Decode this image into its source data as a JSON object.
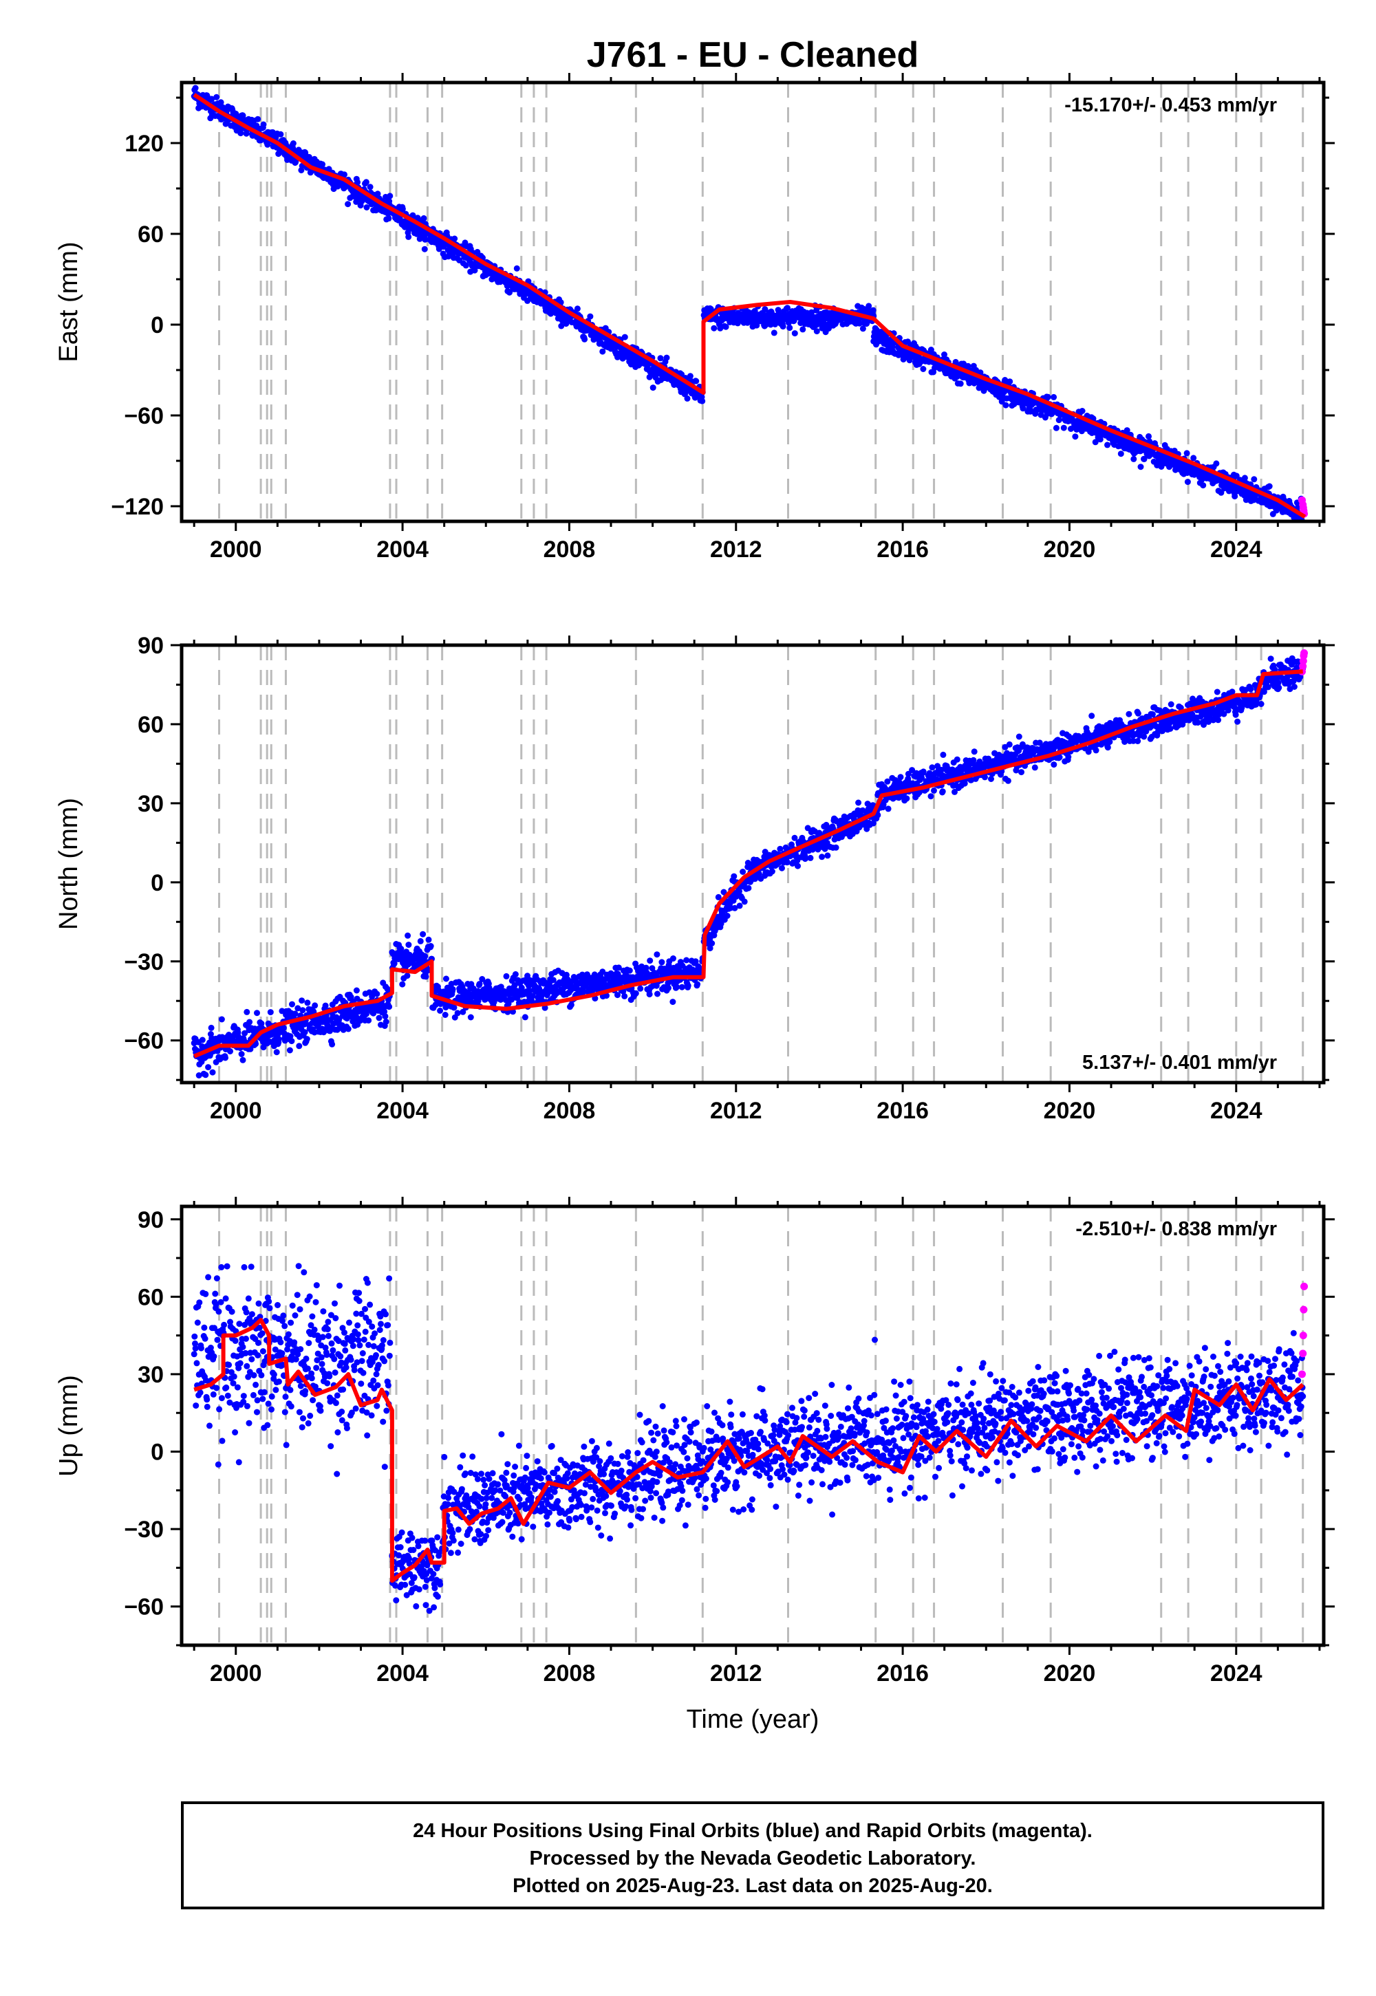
{
  "title": "J761  - EU - Cleaned",
  "colors": {
    "final_points": "#0000ff",
    "rapid_points": "#ff00ff",
    "model_line": "#ff0000",
    "event_lines": "#bbbbbb"
  },
  "chart_data": [
    {
      "type": "scatter",
      "ylabel": "East (mm)",
      "xlabel": "",
      "xlim": [
        1998.7,
        2026.1
      ],
      "ylim": [
        -130,
        160
      ],
      "xticks": [
        2000,
        2004,
        2008,
        2012,
        2016,
        2020,
        2024
      ],
      "yticks": [
        -120,
        -60,
        0,
        60,
        120
      ],
      "rate_text": "-15.170+/- 0.453 mm/yr",
      "rate_position": "top-right",
      "model_line": [
        [
          1999.0,
          152
        ],
        [
          1999.6,
          141
        ],
        [
          2000.3,
          130
        ],
        [
          2001.0,
          120
        ],
        [
          2001.8,
          104
        ],
        [
          2002.6,
          96
        ],
        [
          2003.5,
          80
        ],
        [
          2004.3,
          68
        ],
        [
          2005.0,
          57
        ],
        [
          2006.0,
          40
        ],
        [
          2007.0,
          26
        ],
        [
          2008.0,
          8
        ],
        [
          2009.0,
          -8
        ],
        [
          2010.0,
          -24
        ],
        [
          2011.22,
          -45
        ],
        [
          2011.22,
          2
        ],
        [
          2011.6,
          10
        ],
        [
          2012.5,
          13
        ],
        [
          2013.3,
          15
        ],
        [
          2014.3,
          11
        ],
        [
          2015.3,
          4
        ],
        [
          2016.0,
          -14
        ],
        [
          2017.0,
          -25
        ],
        [
          2018.0,
          -36
        ],
        [
          2019.0,
          -46
        ],
        [
          2020.0,
          -58
        ],
        [
          2021.0,
          -70
        ],
        [
          2022.0,
          -81
        ],
        [
          2023.0,
          -92
        ],
        [
          2024.0,
          -104
        ],
        [
          2025.0,
          -116
        ],
        [
          2025.65,
          -127
        ]
      ],
      "data_bands": [
        {
          "t0": 1999.0,
          "t1": 2011.2,
          "v0": 152,
          "v1": -47,
          "scatter": 3.5
        },
        {
          "t0": 2011.23,
          "t1": 2015.3,
          "v0": 5,
          "v1": 4,
          "scatter": 3.5
        },
        {
          "t0": 2015.3,
          "t1": 2025.6,
          "v0": -8,
          "v1": -125,
          "scatter": 3.5
        }
      ],
      "rapid_points": [
        [
          2025.58,
          -116
        ],
        [
          2025.6,
          -119
        ],
        [
          2025.61,
          -121
        ],
        [
          2025.62,
          -123
        ],
        [
          2025.63,
          -125
        ]
      ]
    },
    {
      "type": "scatter",
      "ylabel": "North (mm)",
      "xlabel": "",
      "xlim": [
        1998.7,
        2026.1
      ],
      "ylim": [
        -76,
        90
      ],
      "xticks": [
        2000,
        2004,
        2008,
        2012,
        2016,
        2020,
        2024
      ],
      "yticks": [
        -60,
        -30,
        0,
        30,
        60,
        90
      ],
      "rate_text": "5.137+/- 0.401 mm/yr",
      "rate_position": "bottom-right",
      "model_line": [
        [
          1999.0,
          -66
        ],
        [
          1999.6,
          -62
        ],
        [
          2000.3,
          -62
        ],
        [
          2000.6,
          -57
        ],
        [
          2001.0,
          -54
        ],
        [
          2001.8,
          -51
        ],
        [
          2002.6,
          -47
        ],
        [
          2003.4,
          -45
        ],
        [
          2003.75,
          -42
        ],
        [
          2003.75,
          -33
        ],
        [
          2004.3,
          -34
        ],
        [
          2004.7,
          -30
        ],
        [
          2004.7,
          -43
        ],
        [
          2005.5,
          -47
        ],
        [
          2006.5,
          -48
        ],
        [
          2007.5,
          -46
        ],
        [
          2008.5,
          -43
        ],
        [
          2009.5,
          -39
        ],
        [
          2010.5,
          -36
        ],
        [
          2011.22,
          -36
        ],
        [
          2011.25,
          -20
        ],
        [
          2011.6,
          -8
        ],
        [
          2012.2,
          2
        ],
        [
          2012.8,
          8
        ],
        [
          2013.5,
          13
        ],
        [
          2014.5,
          20
        ],
        [
          2015.3,
          26
        ],
        [
          2015.5,
          33
        ],
        [
          2016.5,
          36
        ],
        [
          2017.5,
          40
        ],
        [
          2018.5,
          44
        ],
        [
          2019.5,
          48
        ],
        [
          2020.5,
          53
        ],
        [
          2021.5,
          59
        ],
        [
          2022.5,
          64
        ],
        [
          2023.5,
          68
        ],
        [
          2024.0,
          71
        ],
        [
          2024.5,
          71
        ],
        [
          2024.65,
          79
        ],
        [
          2025.6,
          80
        ]
      ],
      "data_bands": [
        {
          "t0": 1999.0,
          "t1": 2003.7,
          "v0": -65,
          "v1": -45,
          "scatter": 3.5
        },
        {
          "t0": 2003.75,
          "t1": 2004.7,
          "v0": -31,
          "v1": -29,
          "scatter": 3.5
        },
        {
          "t0": 2004.72,
          "t1": 2011.2,
          "v0": -45,
          "v1": -34,
          "scatter": 3
        },
        {
          "t0": 2011.23,
          "t1": 2012.3,
          "v0": -22,
          "v1": 3,
          "scatter": 3
        },
        {
          "t0": 2012.3,
          "t1": 2015.4,
          "v0": 3,
          "v1": 27,
          "scatter": 2.5
        },
        {
          "t0": 2015.4,
          "t1": 2024.6,
          "v0": 33,
          "v1": 71,
          "scatter": 2.5
        },
        {
          "t0": 2024.65,
          "t1": 2025.6,
          "v0": 78,
          "v1": 80,
          "scatter": 3
        }
      ],
      "rapid_points": [
        [
          2025.58,
          80
        ],
        [
          2025.6,
          82
        ],
        [
          2025.61,
          84
        ],
        [
          2025.62,
          86
        ],
        [
          2025.63,
          87
        ]
      ]
    },
    {
      "type": "scatter",
      "ylabel": "Up (mm)",
      "xlabel": "Time (year)",
      "xlim": [
        1998.7,
        2026.1
      ],
      "ylim": [
        -75,
        95
      ],
      "xticks": [
        2000,
        2004,
        2008,
        2012,
        2016,
        2020,
        2024
      ],
      "yticks": [
        -60,
        -30,
        0,
        30,
        60,
        90
      ],
      "rate_text": "-2.510+/- 0.838 mm/yr",
      "rate_position": "top-right",
      "model_line": [
        [
          1999.0,
          24
        ],
        [
          1999.4,
          26
        ],
        [
          1999.7,
          30
        ],
        [
          1999.7,
          45
        ],
        [
          2000.0,
          45
        ],
        [
          2000.4,
          48
        ],
        [
          2000.6,
          51
        ],
        [
          2000.8,
          45
        ],
        [
          2000.8,
          34
        ],
        [
          2001.2,
          36
        ],
        [
          2001.25,
          26
        ],
        [
          2001.5,
          31
        ],
        [
          2001.9,
          22
        ],
        [
          2002.4,
          25
        ],
        [
          2002.7,
          30
        ],
        [
          2003.0,
          18
        ],
        [
          2003.4,
          20
        ],
        [
          2003.5,
          24
        ],
        [
          2003.75,
          16
        ],
        [
          2003.75,
          -50
        ],
        [
          2004.0,
          -47
        ],
        [
          2004.3,
          -44
        ],
        [
          2004.6,
          -38
        ],
        [
          2004.7,
          -43
        ],
        [
          2005.0,
          -43
        ],
        [
          2005.0,
          -23
        ],
        [
          2005.3,
          -22
        ],
        [
          2005.6,
          -28
        ],
        [
          2005.9,
          -24
        ],
        [
          2006.3,
          -22
        ],
        [
          2006.6,
          -18
        ],
        [
          2006.9,
          -28
        ],
        [
          2007.2,
          -20
        ],
        [
          2007.5,
          -12
        ],
        [
          2008.0,
          -14
        ],
        [
          2008.5,
          -8
        ],
        [
          2009.0,
          -16
        ],
        [
          2009.6,
          -8
        ],
        [
          2010.0,
          -4
        ],
        [
          2010.6,
          -10
        ],
        [
          2011.2,
          -8
        ],
        [
          2011.8,
          4
        ],
        [
          2012.2,
          -6
        ],
        [
          2013.0,
          2
        ],
        [
          2013.3,
          -4
        ],
        [
          2013.6,
          6
        ],
        [
          2014.3,
          -2
        ],
        [
          2014.8,
          4
        ],
        [
          2015.4,
          -4
        ],
        [
          2016.0,
          -8
        ],
        [
          2016.4,
          6
        ],
        [
          2016.8,
          0
        ],
        [
          2017.3,
          8
        ],
        [
          2018.0,
          -2
        ],
        [
          2018.6,
          12
        ],
        [
          2019.2,
          2
        ],
        [
          2019.7,
          10
        ],
        [
          2020.4,
          4
        ],
        [
          2021.0,
          14
        ],
        [
          2021.6,
          4
        ],
        [
          2022.3,
          14
        ],
        [
          2022.8,
          8
        ],
        [
          2023.0,
          24
        ],
        [
          2023.6,
          18
        ],
        [
          2024.0,
          26
        ],
        [
          2024.4,
          16
        ],
        [
          2024.8,
          28
        ],
        [
          2025.2,
          20
        ],
        [
          2025.6,
          26
        ]
      ],
      "data_bands": [
        {
          "t0": 1999.0,
          "t1": 2003.7,
          "v0": 38,
          "v1": 34,
          "scatter": 14
        },
        {
          "t0": 2003.75,
          "t1": 2004.9,
          "v0": -45,
          "v1": -42,
          "scatter": 7
        },
        {
          "t0": 2004.95,
          "t1": 2011.2,
          "v0": -24,
          "v1": -5,
          "scatter": 8
        },
        {
          "t0": 2011.2,
          "t1": 2025.6,
          "v0": -3,
          "v1": 24,
          "scatter": 9
        }
      ],
      "rapid_points": [
        [
          2025.58,
          30
        ],
        [
          2025.6,
          38
        ],
        [
          2025.61,
          45
        ],
        [
          2025.62,
          55
        ],
        [
          2025.63,
          64
        ]
      ]
    }
  ],
  "event_lines": [
    1999.6,
    2000.6,
    2000.75,
    2000.85,
    2001.2,
    2003.7,
    2003.85,
    2004.6,
    2004.95,
    2006.85,
    2007.15,
    2007.45,
    2009.6,
    2011.2,
    2013.25,
    2015.35,
    2016.25,
    2016.75,
    2018.4,
    2019.55,
    2022.2,
    2022.85,
    2024.0,
    2024.6,
    2025.6
  ],
  "footer": {
    "line1": "24 Hour Positions Using Final Orbits (blue) and Rapid Orbits (magenta).",
    "line2": "Processed by the Nevada Geodetic Laboratory.",
    "line3": "Plotted on 2025-Aug-23. Last data on 2025-Aug-20."
  }
}
